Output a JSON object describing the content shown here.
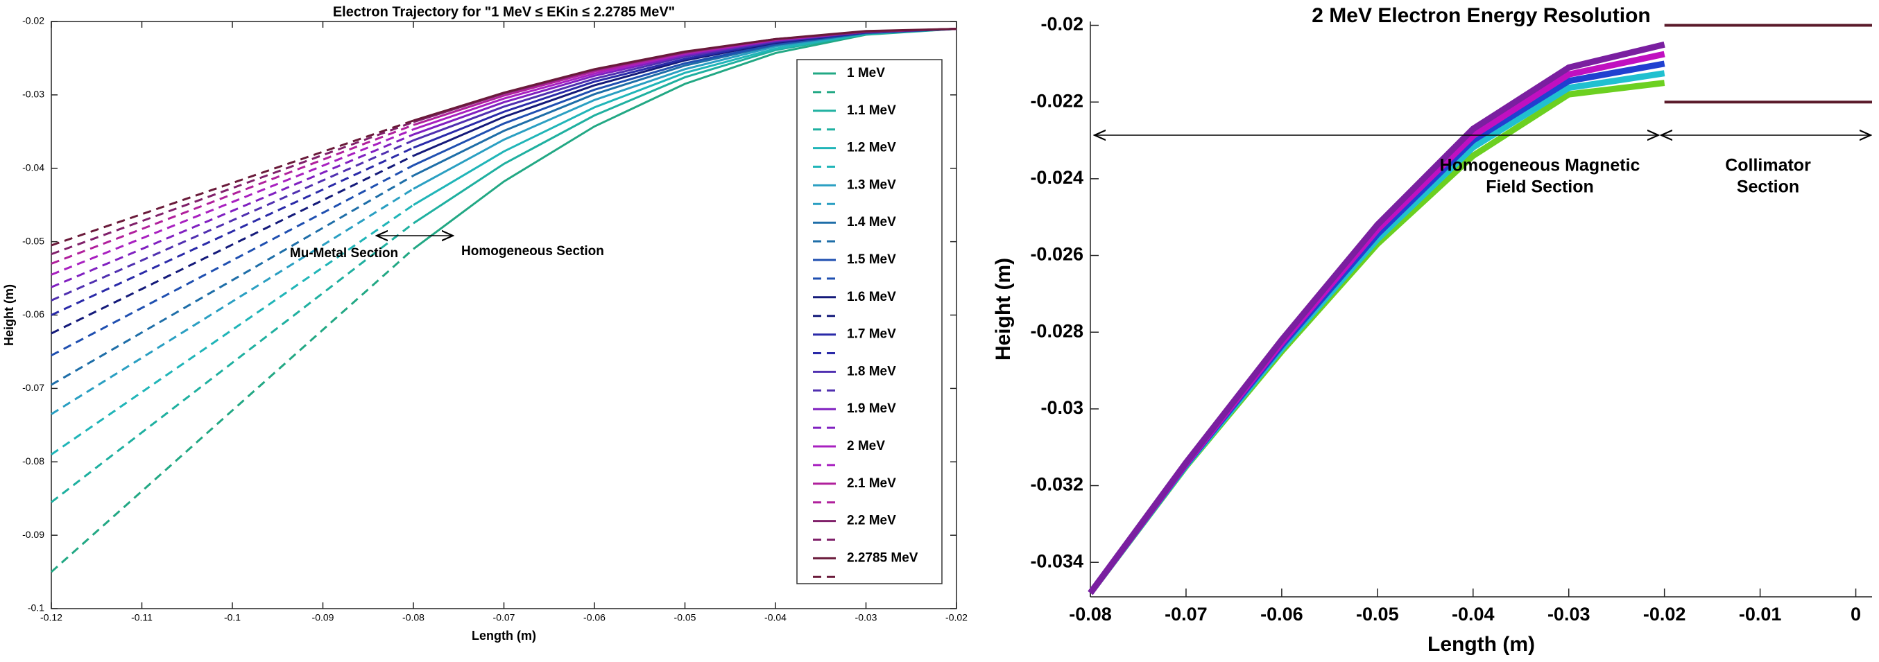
{
  "chart_data": [
    {
      "type": "line",
      "title": "Electron Trajectory for \"1 MeV ≤ EKin ≤ 2.2785 MeV\"",
      "x_label": "Length (m)",
      "y_label": "Height (m)",
      "x": [
        -0.12,
        -0.08,
        -0.07,
        -0.06,
        -0.05,
        -0.04,
        -0.03,
        -0.02
      ],
      "xlim": [
        -0.12,
        -0.02
      ],
      "xticks": [
        -0.12,
        -0.11,
        -0.1,
        -0.09,
        -0.08,
        -0.07,
        -0.06,
        -0.05,
        -0.04,
        -0.03,
        -0.02
      ],
      "ylim": [
        -0.1,
        -0.02
      ],
      "yticks": [
        -0.1,
        -0.09,
        -0.08,
        -0.07,
        -0.06,
        -0.05,
        -0.04,
        -0.03,
        -0.02
      ],
      "annotations": [
        {
          "text": "Mu-Metal Section"
        },
        {
          "text": "Homogeneous Section"
        }
      ],
      "series": [
        {
          "name": "1 MeV",
          "color": "#22a884",
          "values": [
            null,
            -0.051,
            -0.0418,
            -0.0343,
            -0.0285,
            -0.0243,
            -0.0218,
            -0.021
          ]
        },
        {
          "color": "#22a884",
          "dash": true,
          "values": [
            -0.095,
            -0.051,
            null,
            null,
            null,
            null,
            null,
            null
          ]
        },
        {
          "name": "1.1 MeV",
          "color": "#1fb0a0",
          "values": [
            null,
            -0.0475,
            -0.0394,
            -0.0328,
            -0.0276,
            -0.0239,
            -0.0217,
            -0.021
          ]
        },
        {
          "color": "#1fb0a0",
          "dash": true,
          "values": [
            -0.0855,
            -0.0475,
            null,
            null,
            null,
            null,
            null,
            null
          ]
        },
        {
          "name": "1.2 MeV",
          "color": "#20b5b8",
          "values": [
            null,
            -0.045,
            -0.0377,
            -0.0317,
            -0.027,
            -0.0237,
            -0.0217,
            -0.021
          ]
        },
        {
          "color": "#20b5b8",
          "dash": true,
          "values": [
            -0.079,
            -0.045,
            null,
            null,
            null,
            null,
            null,
            null
          ]
        },
        {
          "name": "1.3 MeV",
          "color": "#2a9fc2",
          "values": [
            null,
            -0.0428,
            -0.0361,
            -0.0307,
            -0.0265,
            -0.0234,
            -0.0216,
            -0.021
          ]
        },
        {
          "color": "#2a9fc2",
          "dash": true,
          "values": [
            -0.0735,
            -0.0428,
            null,
            null,
            null,
            null,
            null,
            null
          ]
        },
        {
          "name": "1.4 MeV",
          "color": "#1e6ea8",
          "values": [
            null,
            -0.041,
            -0.0349,
            -0.0299,
            -0.026,
            -0.0232,
            -0.0216,
            -0.021
          ]
        },
        {
          "color": "#1e6ea8",
          "dash": true,
          "values": [
            -0.0695,
            -0.041,
            null,
            null,
            null,
            null,
            null,
            null
          ]
        },
        {
          "name": "1.5 MeV",
          "color": "#1f4fb0",
          "values": [
            null,
            -0.0396,
            -0.0339,
            -0.0293,
            -0.0257,
            -0.0231,
            -0.0215,
            -0.021
          ]
        },
        {
          "color": "#1f4fb0",
          "dash": true,
          "values": [
            -0.0655,
            -0.0396,
            null,
            null,
            null,
            null,
            null,
            null
          ]
        },
        {
          "name": "1.6 MeV",
          "color": "#141a7a",
          "values": [
            null,
            -0.0383,
            -0.033,
            -0.0287,
            -0.0253,
            -0.0229,
            -0.0215,
            -0.021
          ]
        },
        {
          "color": "#141a7a",
          "dash": true,
          "values": [
            -0.0625,
            -0.0383,
            null,
            null,
            null,
            null,
            null,
            null
          ]
        },
        {
          "name": "1.7 MeV",
          "color": "#2a2aa8",
          "values": [
            null,
            -0.0372,
            -0.0323,
            -0.0282,
            -0.0251,
            -0.0228,
            -0.0215,
            -0.021
          ]
        },
        {
          "color": "#2a2aa8",
          "dash": true,
          "values": [
            -0.06,
            -0.0372,
            null,
            null,
            null,
            null,
            null,
            null
          ]
        },
        {
          "name": "1.8 MeV",
          "color": "#5030b0",
          "values": [
            null,
            -0.0362,
            -0.0316,
            -0.0278,
            -0.0248,
            -0.0227,
            -0.0214,
            -0.021
          ]
        },
        {
          "color": "#5030b0",
          "dash": true,
          "values": [
            -0.058,
            -0.0362,
            null,
            null,
            null,
            null,
            null,
            null
          ]
        },
        {
          "name": "1.9 MeV",
          "color": "#8020c0",
          "values": [
            null,
            -0.0354,
            -0.031,
            -0.0274,
            -0.0246,
            -0.0226,
            -0.0214,
            -0.021
          ]
        },
        {
          "color": "#8020c0",
          "dash": true,
          "values": [
            -0.0562,
            -0.0354,
            null,
            null,
            null,
            null,
            null,
            null
          ]
        },
        {
          "name": "2 MeV",
          "color": "#a820c0",
          "values": [
            null,
            -0.0347,
            -0.0305,
            -0.0271,
            -0.0244,
            -0.0225,
            -0.0214,
            -0.021
          ]
        },
        {
          "color": "#a820c0",
          "dash": true,
          "values": [
            -0.0545,
            -0.0347,
            null,
            null,
            null,
            null,
            null,
            null
          ]
        },
        {
          "name": "2.1 MeV",
          "color": "#b0209c",
          "values": [
            null,
            -0.0341,
            -0.0301,
            -0.0268,
            -0.0243,
            -0.0225,
            -0.0214,
            -0.021
          ]
        },
        {
          "color": "#b0209c",
          "dash": true,
          "values": [
            -0.053,
            -0.0341,
            null,
            null,
            null,
            null,
            null,
            null
          ]
        },
        {
          "name": "2.2 MeV",
          "color": "#80206a",
          "values": [
            null,
            -0.0337,
            -0.0298,
            -0.0266,
            -0.0242,
            -0.0224,
            -0.0214,
            -0.021
          ]
        },
        {
          "color": "#80206a",
          "dash": true,
          "values": [
            -0.0517,
            -0.0337,
            null,
            null,
            null,
            null,
            null,
            null
          ]
        },
        {
          "name": "2.2785 MeV",
          "color": "#6a1a3a",
          "values": [
            null,
            -0.0335,
            -0.0297,
            -0.0265,
            -0.0241,
            -0.0224,
            -0.0213,
            -0.021
          ]
        },
        {
          "color": "#6a1a3a",
          "dash": true,
          "values": [
            -0.0505,
            -0.0335,
            null,
            null,
            null,
            null,
            null,
            null
          ]
        }
      ]
    },
    {
      "type": "line",
      "title": "2 MeV Electron Energy Resolution",
      "x_label": "Length (m)",
      "y_label": "Height (m)",
      "x": [
        -0.08,
        -0.07,
        -0.06,
        -0.05,
        -0.04,
        -0.03,
        -0.02
      ],
      "xlim": [
        -0.08,
        0.0017
      ],
      "xticks": [
        -0.08,
        -0.07,
        -0.06,
        -0.05,
        -0.04,
        -0.03,
        -0.02,
        -0.01,
        0
      ],
      "ylim": [
        -0.0349,
        -0.0199
      ],
      "yticks": [
        -0.034,
        -0.032,
        -0.03,
        -0.028,
        -0.026,
        -0.024,
        -0.022,
        -0.02
      ],
      "annotations": [
        {
          "text": [
            "Homogeneous Magnetic",
            "Field Section"
          ]
        },
        {
          "text": [
            "Collimator",
            "Section"
          ]
        }
      ],
      "collimator": {
        "x": [
          -0.02,
          0.0017
        ],
        "y": [
          -0.022,
          -0.02
        ],
        "color": "#5a1a2a"
      },
      "series": [
        {
          "color": "#6cd020",
          "values": [
            -0.0348,
            -0.0315,
            -0.0285,
            -0.0257,
            -0.0234,
            -0.0218,
            -0.0215
          ]
        },
        {
          "color": "#20c0d0",
          "values": [
            -0.0348,
            -0.03148,
            -0.02843,
            -0.02558,
            -0.02318,
            -0.02163,
            -0.02125
          ]
        },
        {
          "color": "#2040d0",
          "values": [
            -0.0348,
            -0.03145,
            -0.02835,
            -0.02545,
            -0.023,
            -0.02145,
            -0.021
          ]
        },
        {
          "color": "#c010c0",
          "values": [
            -0.0348,
            -0.03143,
            -0.02828,
            -0.02533,
            -0.02288,
            -0.02128,
            -0.02075
          ]
        },
        {
          "color": "#7a1fa0",
          "values": [
            -0.0348,
            -0.0314,
            -0.0282,
            -0.0252,
            -0.0227,
            -0.0211,
            -0.0205
          ]
        }
      ]
    }
  ]
}
